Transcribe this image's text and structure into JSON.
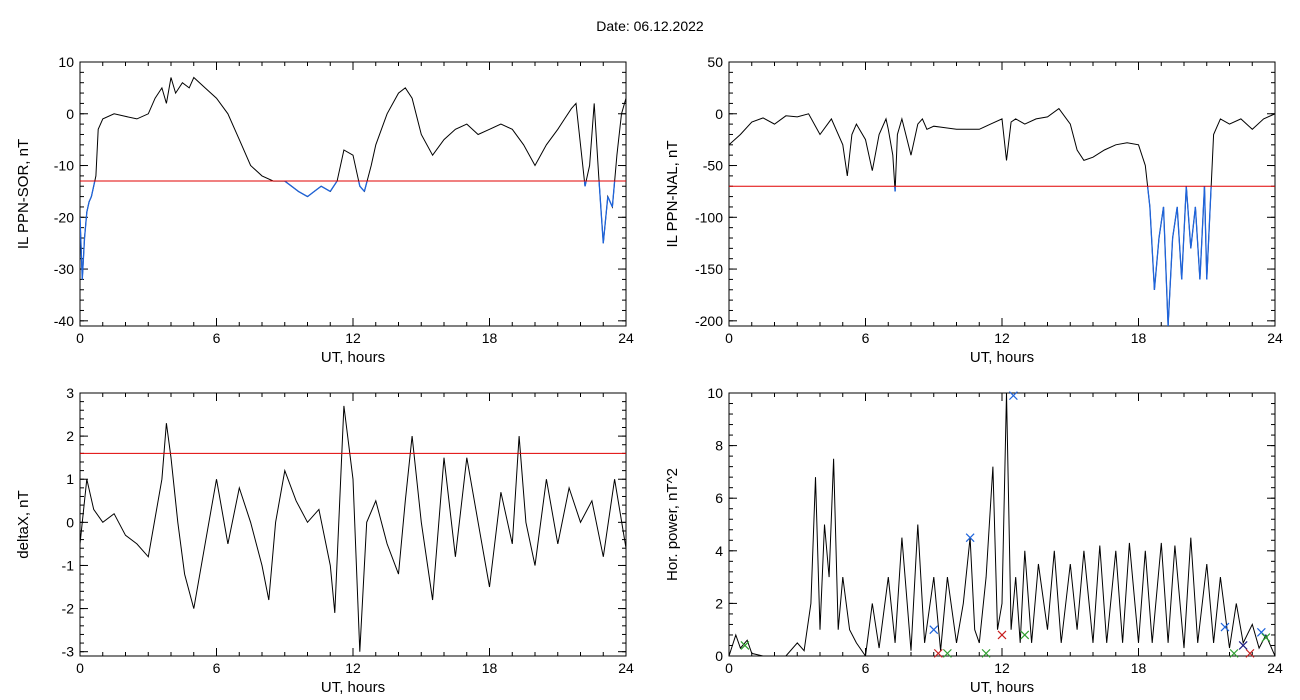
{
  "header": {
    "date_label": "Date:  06.12.2022"
  },
  "colors": {
    "trace": "#000000",
    "threshold": "#e00000",
    "below_threshold": "#1e64dc",
    "marker_blue": "#1e64dc",
    "marker_green": "#2e9e2e",
    "marker_red": "#c81e1e",
    "marker_navy": "#1a1a80"
  },
  "chart_data": [
    {
      "id": "sor",
      "type": "line",
      "title": "",
      "xlabel": "UT, hours",
      "ylabel": "IL PPN-SOR, nT",
      "xlim": [
        0,
        24
      ],
      "ylim": [
        -41,
        10
      ],
      "xticks": [
        0,
        6,
        12,
        18,
        24
      ],
      "yticks": [
        10,
        0,
        -10,
        -20,
        -30,
        -40
      ],
      "threshold": -13,
      "highlight_below_threshold": true,
      "series": [
        {
          "x": [
            0,
            0.1,
            0.2,
            0.3,
            0.4,
            0.5,
            0.6,
            0.7,
            0.8,
            1,
            1.5,
            2,
            2.5,
            3,
            3.3,
            3.6,
            3.8,
            4,
            4.2,
            4.5,
            4.8,
            5,
            5.5,
            6,
            6.5,
            7,
            7.5,
            8,
            8.5,
            9,
            9.3,
            9.6,
            10,
            10.3,
            10.6,
            11,
            11.3,
            11.6,
            12,
            12.3,
            12.5,
            12.8,
            13,
            13.5,
            14,
            14.3,
            14.6,
            15,
            15.5,
            16,
            16.5,
            17,
            17.5,
            18,
            18.5,
            19,
            19.5,
            20,
            20.5,
            21,
            21.3,
            21.6,
            21.8,
            22,
            22.2,
            22.4,
            22.6,
            22.8,
            23,
            23.2,
            23.4,
            23.6,
            23.8,
            24
          ],
          "y": [
            -20,
            -32,
            -24,
            -19,
            -17,
            -16,
            -14,
            -12,
            -3,
            -1,
            0,
            -0.5,
            -1,
            0,
            3,
            5,
            2,
            7,
            4,
            6,
            5,
            7,
            5,
            3,
            0,
            -5,
            -10,
            -12,
            -13,
            -13,
            -14,
            -15,
            -16,
            -15,
            -14,
            -15,
            -13,
            -7,
            -8,
            -14,
            -15,
            -10,
            -6,
            0,
            4,
            5,
            3,
            -4,
            -8,
            -5,
            -3,
            -2,
            -4,
            -3,
            -2,
            -3,
            -6,
            -10,
            -6,
            -3,
            -1,
            1,
            2,
            -6,
            -14,
            -10,
            2,
            -12,
            -25,
            -16,
            -18,
            -8,
            0,
            3
          ]
        }
      ]
    },
    {
      "id": "nal",
      "type": "line",
      "title": "",
      "xlabel": "UT, hours",
      "ylabel": "IL PPN-NAL, nT",
      "xlim": [
        0,
        24
      ],
      "ylim": [
        -205,
        50
      ],
      "xticks": [
        0,
        6,
        12,
        18,
        24
      ],
      "yticks": [
        50,
        0,
        -50,
        -100,
        -150,
        -200
      ],
      "threshold": -70,
      "highlight_below_threshold": true,
      "series": [
        {
          "x": [
            0,
            0.5,
            1,
            1.5,
            2,
            2.5,
            3,
            3.5,
            4,
            4.5,
            5,
            5.2,
            5.4,
            5.6,
            6,
            6.3,
            6.6,
            6.9,
            7,
            7.2,
            7.3,
            7.4,
            7.6,
            8,
            8.3,
            8.5,
            8.7,
            9,
            10,
            11,
            11.5,
            12,
            12.2,
            12.4,
            12.6,
            13,
            13.5,
            14,
            14.5,
            15,
            15.3,
            15.6,
            16,
            16.5,
            17,
            17.5,
            18,
            18.3,
            18.5,
            18.7,
            18.9,
            19.1,
            19.3,
            19.5,
            19.7,
            19.9,
            20.1,
            20.3,
            20.5,
            20.7,
            20.9,
            21,
            21.3,
            21.6,
            22,
            22.5,
            23,
            23.5,
            24
          ],
          "y": [
            -30,
            -20,
            -8,
            -4,
            -10,
            -2,
            -3,
            0,
            -20,
            -5,
            -30,
            -60,
            -20,
            -10,
            -25,
            -55,
            -20,
            -5,
            -15,
            -40,
            -75,
            -20,
            -5,
            -40,
            -10,
            -5,
            -15,
            -12,
            -15,
            -15,
            -10,
            -5,
            -45,
            -8,
            -5,
            -10,
            -5,
            -3,
            5,
            -10,
            -35,
            -45,
            -42,
            -35,
            -30,
            -28,
            -30,
            -50,
            -90,
            -170,
            -120,
            -90,
            -205,
            -120,
            -90,
            -160,
            -70,
            -130,
            -90,
            -160,
            -70,
            -160,
            -20,
            -5,
            -10,
            -5,
            -15,
            -5,
            0
          ]
        }
      ]
    },
    {
      "id": "deltax",
      "type": "line",
      "title": "",
      "xlabel": "UT, hours",
      "ylabel": "deltaX, nT",
      "xlim": [
        0,
        24
      ],
      "ylim": [
        -3.1,
        3
      ],
      "xticks": [
        0,
        6,
        12,
        18,
        24
      ],
      "yticks": [
        3,
        2,
        1,
        0,
        -1,
        -2,
        -3
      ],
      "threshold": 1.6,
      "highlight_below_threshold": false,
      "series": [
        {
          "x": [
            0,
            0.3,
            0.6,
            1,
            1.5,
            2,
            2.5,
            3,
            3.3,
            3.6,
            3.8,
            4,
            4.3,
            4.6,
            5,
            5.5,
            6,
            6.5,
            7,
            7.5,
            8,
            8.3,
            8.6,
            9,
            9.5,
            10,
            10.5,
            11,
            11.2,
            11.6,
            12,
            12.3,
            12.6,
            13,
            13.5,
            14,
            14.3,
            14.6,
            15,
            15.5,
            16,
            16.5,
            17,
            17.5,
            18,
            18.5,
            19,
            19.3,
            19.6,
            20,
            20.5,
            21,
            21.5,
            22,
            22.5,
            23,
            23.5,
            24
          ],
          "y": [
            -0.5,
            1,
            0.3,
            0,
            0.2,
            -0.3,
            -0.5,
            -0.8,
            0.1,
            1,
            2.3,
            1.5,
            0,
            -1.2,
            -2,
            -0.5,
            1,
            -0.5,
            0.8,
            0,
            -1,
            -1.8,
            0,
            1.2,
            0.5,
            0,
            0.3,
            -1,
            -2.1,
            2.7,
            1,
            -3,
            0,
            0.5,
            -0.5,
            -1.2,
            0.5,
            2,
            0,
            -1.8,
            1.5,
            -0.8,
            1.5,
            0,
            -1.5,
            0.7,
            -0.5,
            2,
            0,
            -1,
            1,
            -0.5,
            0.8,
            0,
            0.5,
            -0.8,
            1,
            -0.6
          ]
        }
      ]
    },
    {
      "id": "power",
      "type": "line",
      "title": "",
      "xlabel": "UT, hours",
      "ylabel": "Hor. power, nT^2",
      "xlim": [
        0,
        24
      ],
      "ylim": [
        0,
        10
      ],
      "xticks": [
        0,
        6,
        12,
        18,
        24
      ],
      "yticks": [
        10,
        8,
        6,
        4,
        2,
        0
      ],
      "threshold": null,
      "highlight_below_threshold": false,
      "series": [
        {
          "x": [
            0,
            0.3,
            0.5,
            0.8,
            1,
            1.5,
            2,
            2.5,
            3,
            3.3,
            3.6,
            3.8,
            4,
            4.2,
            4.4,
            4.6,
            4.8,
            5,
            5.3,
            5.6,
            6,
            6.3,
            6.6,
            7,
            7.3,
            7.6,
            8,
            8.3,
            8.6,
            9,
            9.3,
            9.6,
            10,
            10.3,
            10.6,
            10.8,
            11,
            11.3,
            11.6,
            11.8,
            12,
            12.2,
            12.4,
            12.6,
            12.8,
            13,
            13.3,
            13.6,
            14,
            14.3,
            14.6,
            15,
            15.3,
            15.6,
            16,
            16.3,
            16.6,
            17,
            17.3,
            17.6,
            18,
            18.3,
            18.6,
            19,
            19.3,
            19.6,
            20,
            20.3,
            20.6,
            21,
            21.3,
            21.6,
            22,
            22.3,
            22.6,
            23,
            23.3,
            23.6,
            24
          ],
          "y": [
            0,
            0.8,
            0.3,
            0.6,
            0.1,
            0,
            0,
            0,
            0.5,
            0.2,
            2,
            6.8,
            1,
            5,
            3,
            7.5,
            1,
            3,
            1,
            0.5,
            0,
            2,
            0.3,
            3,
            0.5,
            4.5,
            0.2,
            5,
            0.5,
            3,
            0.2,
            3,
            0.5,
            2,
            4.5,
            1,
            0.5,
            3,
            7.2,
            1,
            2,
            10,
            1,
            3,
            0.5,
            4,
            0.5,
            3.5,
            1,
            4,
            0.5,
            3.5,
            1,
            4,
            0.5,
            4.2,
            0.5,
            4,
            0.5,
            4.3,
            0.5,
            4,
            0.5,
            4.3,
            0.5,
            4.2,
            0.3,
            4.5,
            0.5,
            3.5,
            0.5,
            3,
            0.3,
            2,
            0.5,
            1.2,
            0.3,
            0.8,
            0
          ]
        }
      ],
      "markers": [
        {
          "x": 0.7,
          "y": 0.4,
          "symbol": "x",
          "color": "#2e9e2e"
        },
        {
          "x": 9.0,
          "y": 1.0,
          "symbol": "x",
          "color": "#1e64dc"
        },
        {
          "x": 9.2,
          "y": 0.1,
          "symbol": "x",
          "color": "#c81e1e"
        },
        {
          "x": 9.6,
          "y": 0.1,
          "symbol": "x",
          "color": "#2e9e2e"
        },
        {
          "x": 10.6,
          "y": 4.5,
          "symbol": "x",
          "color": "#1e64dc"
        },
        {
          "x": 11.3,
          "y": 0.1,
          "symbol": "x",
          "color": "#2e9e2e"
        },
        {
          "x": 12.0,
          "y": 0.8,
          "symbol": "x",
          "color": "#c81e1e"
        },
        {
          "x": 12.5,
          "y": 9.9,
          "symbol": "x",
          "color": "#1e64dc"
        },
        {
          "x": 13.0,
          "y": 0.8,
          "symbol": "x",
          "color": "#2e9e2e"
        },
        {
          "x": 21.8,
          "y": 1.1,
          "symbol": "x",
          "color": "#1e64dc"
        },
        {
          "x": 22.2,
          "y": 0.1,
          "symbol": "x",
          "color": "#2e9e2e"
        },
        {
          "x": 22.6,
          "y": 0.4,
          "symbol": "x",
          "color": "#1a1a80"
        },
        {
          "x": 22.9,
          "y": 0.1,
          "symbol": "x",
          "color": "#c81e1e"
        },
        {
          "x": 23.4,
          "y": 0.9,
          "symbol": "x",
          "color": "#1e64dc"
        },
        {
          "x": 23.6,
          "y": 0.7,
          "symbol": "x",
          "color": "#2e9e2e"
        }
      ]
    }
  ]
}
